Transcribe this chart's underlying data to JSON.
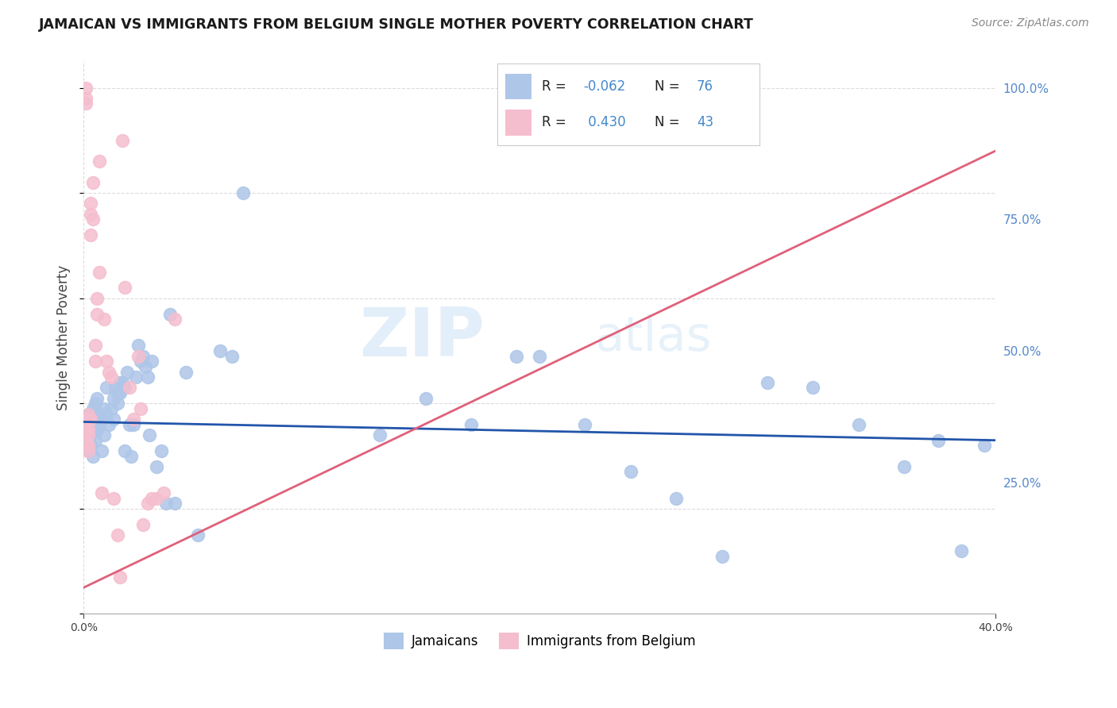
{
  "title": "JAMAICAN VS IMMIGRANTS FROM BELGIUM SINGLE MOTHER POVERTY CORRELATION CHART",
  "source": "Source: ZipAtlas.com",
  "ylabel": "Single Mother Poverty",
  "legend_blue_label": "Jamaicans",
  "legend_pink_label": "Immigrants from Belgium",
  "R_blue": -0.062,
  "N_blue": 76,
  "R_pink": 0.43,
  "N_pink": 43,
  "blue_color": "#aec6e8",
  "pink_color": "#f5bece",
  "blue_line_color": "#2255aa",
  "pink_line_color": "#e0607a",
  "watermark_zip": "ZIP",
  "watermark_atlas": "atlas",
  "xlim": [
    0.0,
    0.4
  ],
  "ylim": [
    0.0,
    1.05
  ],
  "right_yticks": [
    0.0,
    0.25,
    0.5,
    0.75,
    1.0
  ],
  "right_yticklabels": [
    "",
    "25.0%",
    "50.0%",
    "75.0%",
    "100.0%"
  ],
  "blue_scatter_x": [
    0.001,
    0.001,
    0.002,
    0.002,
    0.002,
    0.003,
    0.003,
    0.003,
    0.004,
    0.004,
    0.004,
    0.004,
    0.005,
    0.005,
    0.005,
    0.005,
    0.006,
    0.006,
    0.007,
    0.007,
    0.008,
    0.008,
    0.009,
    0.009,
    0.01,
    0.01,
    0.011,
    0.012,
    0.013,
    0.013,
    0.014,
    0.015,
    0.015,
    0.016,
    0.016,
    0.017,
    0.018,
    0.018,
    0.019,
    0.02,
    0.021,
    0.022,
    0.023,
    0.024,
    0.025,
    0.026,
    0.027,
    0.028,
    0.029,
    0.03,
    0.032,
    0.034,
    0.036,
    0.038,
    0.04,
    0.045,
    0.05,
    0.06,
    0.065,
    0.07,
    0.13,
    0.15,
    0.17,
    0.19,
    0.2,
    0.22,
    0.24,
    0.26,
    0.28,
    0.3,
    0.32,
    0.34,
    0.36,
    0.375,
    0.385,
    0.395
  ],
  "blue_scatter_y": [
    0.36,
    0.33,
    0.38,
    0.31,
    0.35,
    0.37,
    0.34,
    0.32,
    0.36,
    0.3,
    0.39,
    0.35,
    0.4,
    0.36,
    0.33,
    0.37,
    0.41,
    0.35,
    0.36,
    0.38,
    0.37,
    0.31,
    0.34,
    0.39,
    0.38,
    0.43,
    0.36,
    0.39,
    0.41,
    0.37,
    0.43,
    0.42,
    0.4,
    0.44,
    0.42,
    0.44,
    0.43,
    0.31,
    0.46,
    0.36,
    0.3,
    0.36,
    0.45,
    0.51,
    0.48,
    0.49,
    0.47,
    0.45,
    0.34,
    0.48,
    0.28,
    0.31,
    0.21,
    0.57,
    0.21,
    0.46,
    0.15,
    0.5,
    0.49,
    0.8,
    0.34,
    0.41,
    0.36,
    0.49,
    0.49,
    0.36,
    0.27,
    0.22,
    0.11,
    0.44,
    0.43,
    0.36,
    0.28,
    0.33,
    0.12,
    0.32
  ],
  "pink_scatter_x": [
    0.001,
    0.001,
    0.001,
    0.001,
    0.001,
    0.002,
    0.002,
    0.002,
    0.002,
    0.002,
    0.002,
    0.003,
    0.003,
    0.003,
    0.003,
    0.004,
    0.004,
    0.005,
    0.005,
    0.006,
    0.006,
    0.007,
    0.007,
    0.008,
    0.009,
    0.01,
    0.011,
    0.012,
    0.013,
    0.015,
    0.016,
    0.017,
    0.018,
    0.02,
    0.022,
    0.024,
    0.025,
    0.026,
    0.028,
    0.03,
    0.032,
    0.035,
    0.04
  ],
  "pink_scatter_y": [
    0.97,
    1.0,
    0.98,
    0.36,
    0.33,
    0.38,
    0.34,
    0.37,
    0.35,
    0.31,
    0.32,
    0.78,
    0.76,
    0.72,
    0.37,
    0.82,
    0.75,
    0.51,
    0.48,
    0.57,
    0.6,
    0.65,
    0.86,
    0.23,
    0.56,
    0.48,
    0.46,
    0.45,
    0.22,
    0.15,
    0.07,
    0.9,
    0.62,
    0.43,
    0.37,
    0.49,
    0.39,
    0.17,
    0.21,
    0.22,
    0.22,
    0.23,
    0.56
  ],
  "blue_trend_x": [
    0.0,
    0.4
  ],
  "blue_trend_y": [
    0.365,
    0.33
  ],
  "pink_trend_x": [
    0.0,
    0.4
  ],
  "pink_trend_y": [
    0.05,
    0.88
  ]
}
